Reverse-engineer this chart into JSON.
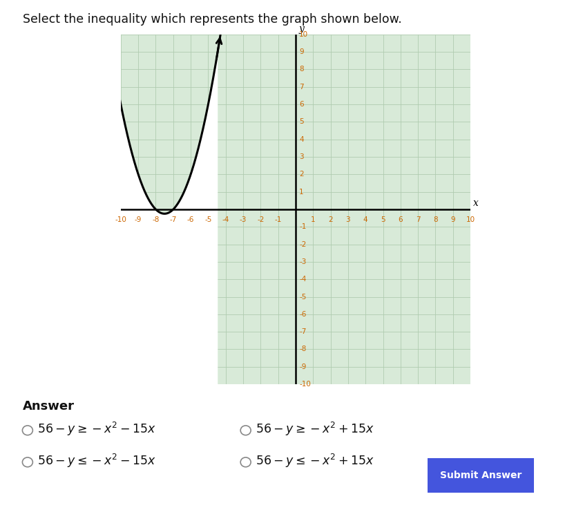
{
  "title": "Select the inequality which represents the graph shown below.",
  "title_fontsize": 12.5,
  "xmin": -10,
  "xmax": 10,
  "ymin": -10,
  "ymax": 10,
  "bg_color": "#d8ead8",
  "white_color": "#ffffff",
  "curve_color": "#000000",
  "curve_lw": 2.2,
  "grid_color": "#b0ccb0",
  "axis_color": "#000000",
  "answer_label": "Answer",
  "submit_btn_color": "#4455dd",
  "submit_btn_text": "Submit Answer",
  "tick_color": "#cc6600",
  "tick_fontsize": 7.5
}
